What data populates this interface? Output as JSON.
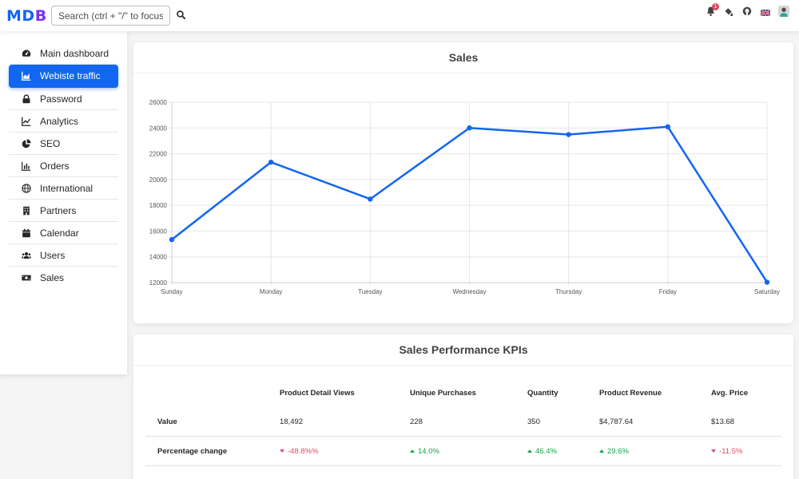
{
  "brand": {
    "logo_text": "MDB",
    "colors": {
      "M": "#1266f1",
      "D": "#1266f1",
      "B": "#7b2ff7"
    }
  },
  "search": {
    "placeholder": "Search (ctrl + \"/\" to focus)"
  },
  "nav_icons": [
    {
      "name": "bell-icon",
      "badge": "1"
    },
    {
      "name": "paint-bucket-icon"
    },
    {
      "name": "github-icon"
    },
    {
      "name": "uk-flag-icon"
    },
    {
      "name": "user-avatar-icon"
    }
  ],
  "sidebar": {
    "items": [
      {
        "label": "Main dashboard",
        "icon": "gauge-icon",
        "active": false
      },
      {
        "label": "Webiste traffic",
        "icon": "chart-area-icon",
        "active": true
      },
      {
        "label": "Password",
        "icon": "lock-icon",
        "active": false
      },
      {
        "label": "Analytics",
        "icon": "chart-line-icon",
        "active": false
      },
      {
        "label": "SEO",
        "icon": "chart-pie-icon",
        "active": false
      },
      {
        "label": "Orders",
        "icon": "chart-bar-icon",
        "active": false
      },
      {
        "label": "International",
        "icon": "globe-icon",
        "active": false
      },
      {
        "label": "Partners",
        "icon": "building-icon",
        "active": false
      },
      {
        "label": "Calendar",
        "icon": "calendar-icon",
        "active": false
      },
      {
        "label": "Users",
        "icon": "users-icon",
        "active": false
      },
      {
        "label": "Sales",
        "icon": "money-bill-icon",
        "active": false
      }
    ]
  },
  "sales_card": {
    "title": "Sales"
  },
  "chart_data": {
    "type": "line",
    "title": "Sales",
    "categories": [
      "Sunday",
      "Monday",
      "Tuesday",
      "Wednesday",
      "Thursday",
      "Friday",
      "Saturday"
    ],
    "series": [
      {
        "values": [
          15339,
          21345,
          18483,
          24003,
          23489,
          24092,
          12034
        ],
        "color": "#1266f1"
      }
    ],
    "ylim": [
      12000,
      26000
    ],
    "yticks": [
      "26000",
      "24000",
      "22000",
      "20000",
      "18000",
      "16000",
      "14000",
      "12000"
    ],
    "grid": true
  },
  "kpi_card": {
    "title": "Sales Performance KPIs",
    "columns": [
      "",
      "Product Detail Views",
      "Unique Purchases",
      "Quantity",
      "Product Revenue",
      "Avg. Price"
    ],
    "rows": [
      {
        "label": "Value",
        "cells": [
          "18,492",
          "228",
          "350",
          "$4,787.64",
          "$13.68"
        ]
      },
      {
        "label": "Percentage change",
        "cells": [
          "-48.8%%",
          "14.0%",
          "46.4%",
          "29.6%",
          "-11.5%"
        ],
        "trend": [
          "down",
          "up",
          "up",
          "up",
          "down"
        ]
      }
    ]
  }
}
